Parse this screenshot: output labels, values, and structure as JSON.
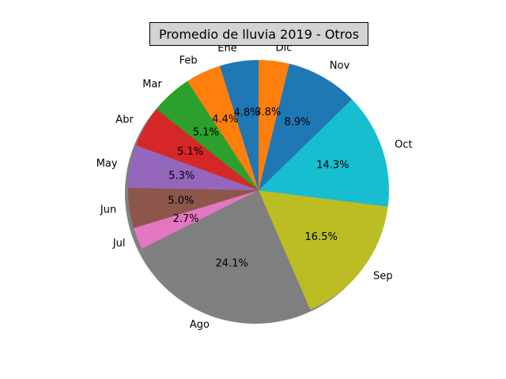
{
  "chart_data": {
    "type": "pie",
    "title": "Promedio de lluvia 2019 - Otros",
    "categories": [
      "Ene",
      "Feb",
      "Mar",
      "Abr",
      "May",
      "Jun",
      "Jul",
      "Ago",
      "Sep",
      "Oct",
      "Nov",
      "Dic"
    ],
    "values": [
      4.8,
      4.4,
      5.1,
      5.1,
      5.3,
      5.0,
      2.7,
      24.1,
      16.5,
      14.3,
      8.9,
      3.8
    ],
    "value_labels": [
      "4.8%",
      "4.4%",
      "5.1%",
      "5.1%",
      "5.3%",
      "5.0%",
      "2.7%",
      "24.1%",
      "16.5%",
      "14.3%",
      "8.9%",
      "3.8%"
    ],
    "colors": [
      "#1f77b4",
      "#ff7f0e",
      "#2ca02c",
      "#d62728",
      "#9467bd",
      "#8c564b",
      "#e377c2",
      "#7f7f7f",
      "#bcbd22",
      "#17becf",
      "#1f77b4",
      "#ff7f0e"
    ],
    "start_angle_deg": 90,
    "direction": "counterclockwise",
    "shadow": true,
    "legend": "none"
  }
}
